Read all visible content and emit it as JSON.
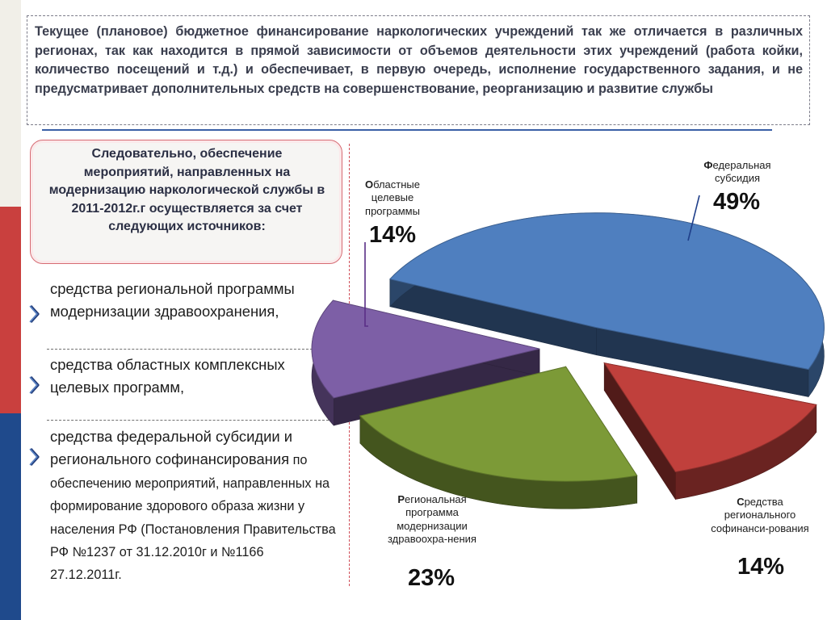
{
  "header": {
    "text": "Текущее (плановое) бюджетное финансирование наркологических учреждений так же отличается в различных регионах, так как находится в прямой зависимости от объемов деятельности этих учреждений (работа койки, количество посещений и т.д.) и обеспечивает, в первую очередь, исполнение государственного задания, и не предусматривает дополнительных средств на совершенствование, реорганизацию и развитие службы"
  },
  "callout": {
    "text": "Следовательно, обеспечение мероприятий, направленных на модернизацию наркологической службы в 2011-2012г.г осуществляется за счет следующих источников:"
  },
  "sources": [
    {
      "main": "средства региональной программы модернизации здравоохранения,",
      "extra": ""
    },
    {
      "main": "средства областных комплексных целевых программ,",
      "extra": ""
    },
    {
      "main": "средства федеральной субсидии и регионального софинансирования",
      "extra": " по обеспечению мероприятий, направленных на формирование здорового образа жизни у населения РФ (Постановления Правительства РФ  №1237 от 31.12.2010г и  №1166 27.12.2011г."
    }
  ],
  "colors": {
    "blue": "#4f7fbf",
    "red": "#c0403c",
    "green": "#7c9a37",
    "purple": "#7d5fa6"
  },
  "chart_data": {
    "type": "pie",
    "style": "3d-exploded",
    "slices": [
      {
        "first_letter": "Ф",
        "label": "едеральная субсидия",
        "value": 49,
        "value_label": "49%",
        "color": "#4f7fbf"
      },
      {
        "first_letter": "С",
        "label": "редства регионального софинанси-рования",
        "value": 14,
        "value_label": "14%",
        "color": "#c0403c"
      },
      {
        "first_letter": "Р",
        "label": "егиональная программа модернизации здравоохра-нения",
        "value": 23,
        "value_label": "23%",
        "color": "#7c9a37"
      },
      {
        "first_letter": "О",
        "label": "бластные целевые программы",
        "value": 14,
        "value_label": "14%",
        "color": "#7d5fa6"
      }
    ]
  }
}
